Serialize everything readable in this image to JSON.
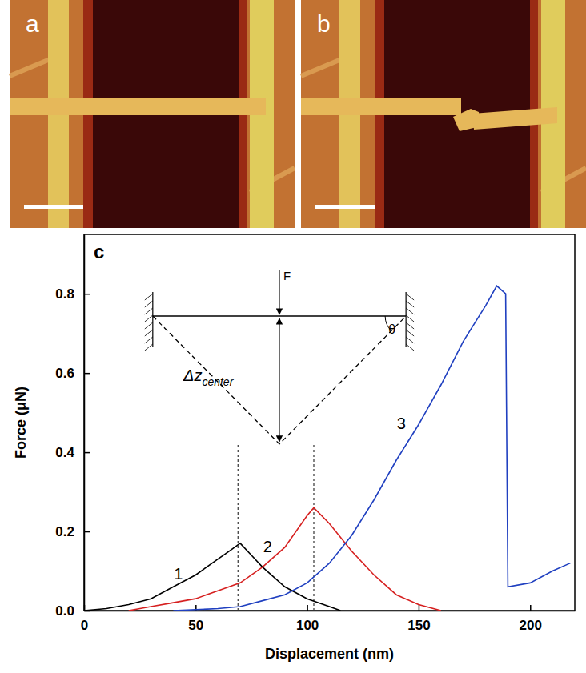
{
  "chart_data": {
    "type": "line",
    "panel_label": "c",
    "x_label": "Displacement (nm)",
    "y_label": "Force (μN)",
    "xlim": [
      0,
      220
    ],
    "xticks": [
      0,
      50,
      100,
      150,
      200
    ],
    "ylim": [
      0,
      0.95
    ],
    "yticks": [
      {
        "value": 0,
        "label": "0.0"
      },
      0.2,
      0.4,
      0.6,
      0.8
    ],
    "series": [
      {
        "name": "1",
        "color": "#000000",
        "x": [
          0,
          10,
          20,
          30,
          40,
          50,
          60,
          65,
          70,
          75,
          80,
          90,
          100,
          110,
          115
        ],
        "values": [
          0,
          0.005,
          0.015,
          0.03,
          0.06,
          0.09,
          0.13,
          0.15,
          0.17,
          0.14,
          0.11,
          0.06,
          0.03,
          0.01,
          0
        ]
      },
      {
        "name": "2",
        "color": "#d62020",
        "x": [
          20,
          30,
          40,
          50,
          60,
          70,
          80,
          90,
          100,
          103,
          110,
          120,
          130,
          140,
          150,
          160
        ],
        "values": [
          0,
          0.01,
          0.02,
          0.03,
          0.05,
          0.07,
          0.11,
          0.16,
          0.24,
          0.26,
          0.22,
          0.15,
          0.09,
          0.04,
          0.015,
          0
        ]
      },
      {
        "name": "3",
        "color": "#2040c0",
        "x": [
          40,
          60,
          70,
          80,
          90,
          100,
          110,
          120,
          130,
          140,
          150,
          160,
          170,
          180,
          185,
          189,
          190,
          200,
          210,
          218
        ],
        "values": [
          0,
          0.005,
          0.01,
          0.025,
          0.04,
          0.07,
          0.12,
          0.19,
          0.28,
          0.38,
          0.47,
          0.57,
          0.68,
          0.77,
          0.82,
          0.8,
          0.06,
          0.07,
          0.1,
          0.12
        ]
      }
    ],
    "vlines": [
      {
        "x": 69,
        "y_top": 0.42
      },
      {
        "x": 103,
        "y_top": 0.42
      }
    ],
    "inset": {
      "force_label": "F",
      "deflection_label": "Δz",
      "deflection_subscript": "center",
      "angle_label": "θ"
    }
  },
  "panels": [
    {
      "label": "a"
    },
    {
      "label": "b"
    }
  ]
}
